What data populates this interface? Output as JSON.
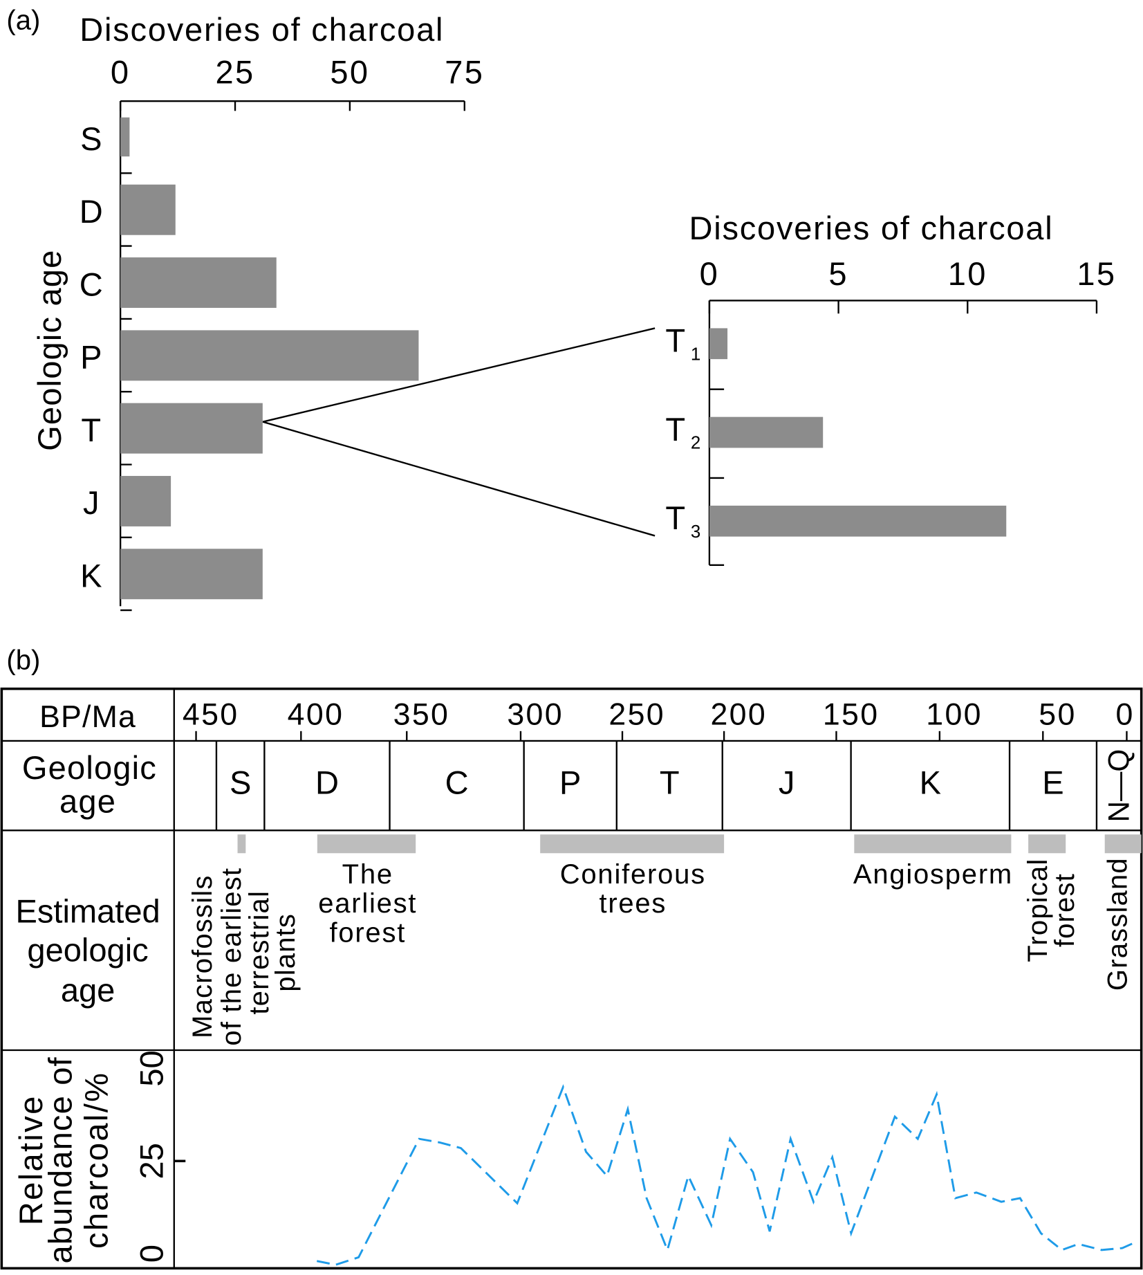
{
  "panel_a_label": "(a)",
  "panel_b_label": "(b)",
  "chart_data": [
    {
      "type": "bar",
      "orientation": "horizontal",
      "title": "Discoveries of charcoal",
      "ylabel": "Geologic age",
      "categories": [
        "S",
        "D",
        "C",
        "P",
        "T",
        "J",
        "K"
      ],
      "values": [
        2,
        12,
        34,
        65,
        31,
        11,
        31
      ],
      "xlim": [
        0,
        75
      ],
      "xticks": [
        "0",
        "25",
        "50",
        "75"
      ]
    },
    {
      "type": "bar",
      "orientation": "horizontal",
      "title": "Discoveries of charcoal",
      "categories": [
        {
          "main": "T",
          "sub": "1"
        },
        {
          "main": "T",
          "sub": "2"
        },
        {
          "main": "T",
          "sub": "3"
        }
      ],
      "values": [
        0.7,
        4.4,
        11.5
      ],
      "xlim": [
        0,
        15
      ],
      "xticks": [
        "0",
        "5",
        "10",
        "15"
      ],
      "zoom_of": "T"
    },
    {
      "type": "line",
      "row_labels": {
        "time": "BP/Ma",
        "age": [
          "Geologic",
          "age"
        ],
        "estimated": [
          "Estimated",
          "geologic",
          "age"
        ],
        "abundance": [
          "Relative",
          "abundance of",
          "charcoal/%"
        ]
      },
      "xticks": [
        "450",
        "400",
        "350",
        "300",
        "250",
        "200",
        "150",
        "100",
        "50",
        "0"
      ],
      "yticks": [
        "0",
        "25",
        "50"
      ],
      "xlim": [
        450,
        0
      ],
      "ylim": [
        0,
        50
      ],
      "periods": [
        "S",
        "D",
        "C",
        "P",
        "T",
        "J",
        "K",
        "E",
        "N—Q"
      ],
      "events": [
        {
          "label": [
            "Macrofossils",
            "of the earliest",
            "terrestrial",
            "plants"
          ],
          "rotated": true
        },
        {
          "label": [
            "The",
            "earliest",
            "forest"
          ],
          "rotated": false
        },
        {
          "label": [
            "Coniferous",
            "trees"
          ],
          "rotated": false
        },
        {
          "label": [
            "Angiosperm"
          ],
          "rotated": false
        },
        {
          "label": [
            "Tropical",
            "forest"
          ],
          "rotated": true
        },
        {
          "label": [
            "Grassland"
          ],
          "rotated": true
        }
      ],
      "series": [
        {
          "name": "Relative abundance of charcoal",
          "color": "#1e9be8",
          "x": [
            392,
            383,
            372,
            343,
            333,
            323,
            296,
            274,
            263,
            253,
            243,
            234,
            224,
            214,
            203,
            194,
            183,
            175,
            165,
            154,
            145,
            136,
            115,
            104,
            95,
            86,
            76,
            64,
            55,
            45,
            35,
            27,
            16,
            6,
            0
          ],
          "y": [
            -2,
            -3,
            -1,
            31,
            30,
            28.5,
            13.6,
            45,
            27.5,
            21,
            39,
            15,
            1,
            21,
            7.7,
            31,
            22,
            6,
            31,
            14,
            26,
            5.5,
            37,
            31,
            43,
            15,
            16.5,
            14,
            15,
            5.5,
            1,
            2.6,
            1,
            1.5,
            3
          ]
        }
      ]
    }
  ]
}
